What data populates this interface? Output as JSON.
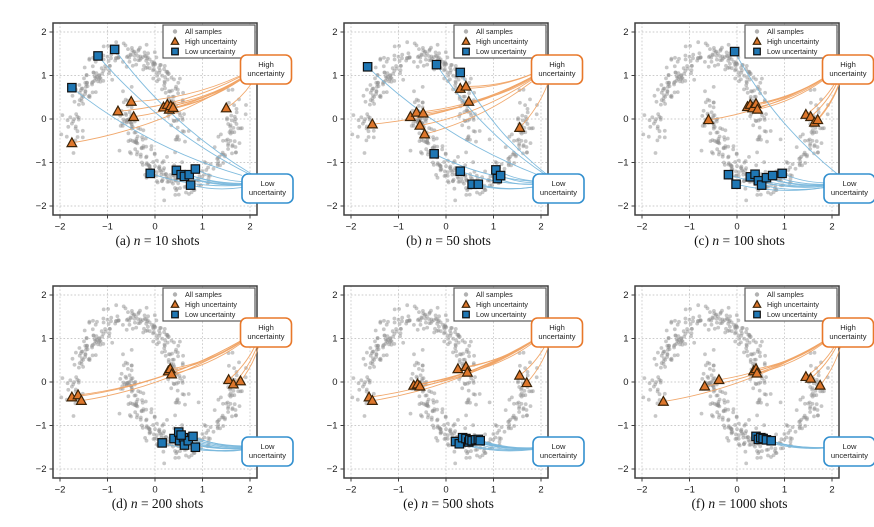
{
  "figure": {
    "background": "#ffffff",
    "colors": {
      "samples": "#909090",
      "high_fill": "#de772c",
      "high_edge": "#3a2308",
      "high_line": "#f0a466",
      "high_box_border": "#e8782a",
      "low_fill": "#1f77b4",
      "low_edge": "#101010",
      "low_line": "#7ab8dc",
      "low_box_border": "#3390cf",
      "grid": "#cbcbcb",
      "frame": "#3f3f3f",
      "tick_label": "#1a1a1a",
      "legend_border": "#5a5a5a",
      "annotation_text": "#1f1f1f"
    }
  },
  "chart_data": {
    "type": "scatter",
    "title": "",
    "xlabel": "",
    "ylabel": "",
    "xlim": [
      -2.15,
      2.17
    ],
    "ylim": [
      -2.21,
      2.21
    ],
    "xticks": [
      "−2",
      "−1",
      "0",
      "1",
      "2"
    ],
    "yticks": [
      "2",
      "1",
      "0",
      "−1",
      "−2"
    ],
    "xtick_values": [
      -2,
      -1,
      0,
      1,
      2
    ],
    "ytick_values": [
      2,
      1,
      0,
      -1,
      -2
    ],
    "grid": true,
    "legend_position": "upper right",
    "legend": [
      {
        "label": "All samples",
        "marker": "dot"
      },
      {
        "label": "High uncertainty",
        "marker": "triangle"
      },
      {
        "label": "Low uncertainty",
        "marker": "square"
      }
    ],
    "annotations": {
      "high_label": [
        "High",
        "uncertainty"
      ],
      "low_label": [
        "Low",
        "uncertainty"
      ]
    },
    "all_samples": {
      "description": "unlabeled two-moons point cloud shown as gray dots, same in every panel",
      "count": 480
    },
    "panels": [
      {
        "id": "a",
        "caption": {
          "prefix": "(a) ",
          "italic": "n",
          "suffix": " = 10 shots"
        },
        "high_uncertainty": [
          [
            -1.75,
            -0.55
          ],
          [
            -0.78,
            0.18
          ],
          [
            -0.5,
            0.4
          ],
          [
            -0.45,
            0.05
          ],
          [
            0.18,
            0.27
          ],
          [
            0.26,
            0.33
          ],
          [
            0.3,
            0.22
          ],
          [
            0.33,
            0.3
          ],
          [
            0.38,
            0.26
          ],
          [
            1.5,
            0.25
          ]
        ],
        "low_uncertainty": [
          [
            -0.85,
            1.6
          ],
          [
            -1.2,
            1.45
          ],
          [
            -1.75,
            0.72
          ],
          [
            -0.1,
            -1.25
          ],
          [
            0.45,
            -1.18
          ],
          [
            0.55,
            -1.28
          ],
          [
            0.62,
            -1.32
          ],
          [
            0.72,
            -1.28
          ],
          [
            0.85,
            -1.15
          ],
          [
            0.75,
            -1.52
          ]
        ]
      },
      {
        "id": "b",
        "caption": {
          "prefix": "(b) ",
          "italic": "n",
          "suffix": " = 50 shots"
        },
        "high_uncertainty": [
          [
            -1.55,
            -0.12
          ],
          [
            -0.75,
            0.05
          ],
          [
            -0.62,
            0.15
          ],
          [
            -0.55,
            -0.15
          ],
          [
            -0.48,
            0.13
          ],
          [
            -0.45,
            -0.35
          ],
          [
            0.3,
            0.7
          ],
          [
            0.42,
            0.75
          ],
          [
            0.48,
            0.4
          ],
          [
            1.55,
            -0.2
          ]
        ],
        "low_uncertainty": [
          [
            -1.65,
            1.2
          ],
          [
            -0.2,
            1.25
          ],
          [
            0.3,
            1.07
          ],
          [
            -0.25,
            -0.8
          ],
          [
            0.3,
            -1.2
          ],
          [
            0.55,
            -1.5
          ],
          [
            0.68,
            -1.5
          ],
          [
            1.05,
            -1.17
          ],
          [
            1.08,
            -1.37
          ],
          [
            1.15,
            -1.3
          ]
        ]
      },
      {
        "id": "c",
        "caption": {
          "prefix": "(c) ",
          "italic": "n",
          "suffix": " = 100 shots"
        },
        "high_uncertainty": [
          [
            -0.6,
            -0.02
          ],
          [
            0.22,
            0.28
          ],
          [
            0.28,
            0.33
          ],
          [
            0.33,
            0.25
          ],
          [
            0.4,
            0.35
          ],
          [
            0.43,
            0.22
          ],
          [
            1.45,
            0.1
          ],
          [
            1.55,
            0.05
          ],
          [
            1.63,
            -0.08
          ],
          [
            1.7,
            -0.02
          ]
        ],
        "low_uncertainty": [
          [
            -0.05,
            1.55
          ],
          [
            -0.18,
            -1.28
          ],
          [
            -0.02,
            -1.5
          ],
          [
            0.28,
            -1.33
          ],
          [
            0.38,
            -1.27
          ],
          [
            0.45,
            -1.42
          ],
          [
            0.52,
            -1.52
          ],
          [
            0.62,
            -1.35
          ],
          [
            0.75,
            -1.3
          ],
          [
            0.95,
            -1.25
          ]
        ]
      },
      {
        "id": "d",
        "caption": {
          "prefix": "(d) ",
          "italic": "n",
          "suffix": " = 200 shots"
        },
        "high_uncertainty": [
          [
            -1.75,
            -0.35
          ],
          [
            -1.62,
            -0.3
          ],
          [
            -1.55,
            -0.43
          ],
          [
            0.28,
            0.25
          ],
          [
            0.32,
            0.3
          ],
          [
            0.35,
            0.18
          ],
          [
            1.55,
            0.05
          ],
          [
            1.65,
            -0.05
          ],
          [
            1.8,
            0.02
          ]
        ],
        "low_uncertainty": [
          [
            0.15,
            -1.4
          ],
          [
            0.4,
            -1.3
          ],
          [
            0.5,
            -1.15
          ],
          [
            0.52,
            -1.35
          ],
          [
            0.6,
            -1.28
          ],
          [
            0.62,
            -1.45
          ],
          [
            0.7,
            -1.35
          ],
          [
            0.8,
            -1.25
          ],
          [
            0.85,
            -1.5
          ],
          [
            0.55,
            -1.22
          ]
        ]
      },
      {
        "id": "e",
        "caption": {
          "prefix": "(e) ",
          "italic": "n",
          "suffix": " = 500 shots"
        },
        "high_uncertainty": [
          [
            -1.62,
            -0.35
          ],
          [
            -1.55,
            -0.43
          ],
          [
            -0.68,
            -0.08
          ],
          [
            -0.6,
            -0.05
          ],
          [
            -0.55,
            -0.1
          ],
          [
            0.25,
            0.3
          ],
          [
            0.42,
            0.35
          ],
          [
            0.45,
            0.22
          ],
          [
            1.55,
            0.15
          ],
          [
            1.7,
            -0.02
          ]
        ],
        "low_uncertainty": [
          [
            0.2,
            -1.37
          ],
          [
            0.28,
            -1.42
          ],
          [
            0.35,
            -1.28
          ],
          [
            0.42,
            -1.3
          ],
          [
            0.48,
            -1.38
          ],
          [
            0.5,
            -1.33
          ],
          [
            0.55,
            -1.35
          ],
          [
            0.62,
            -1.33
          ],
          [
            0.68,
            -1.32
          ],
          [
            0.72,
            -1.35
          ]
        ]
      },
      {
        "id": "f",
        "caption": {
          "prefix": "(f) ",
          "italic": "n",
          "suffix": " = 1000 shots"
        },
        "high_uncertainty": [
          [
            -1.55,
            -0.45
          ],
          [
            -0.68,
            -0.1
          ],
          [
            -0.38,
            0.05
          ],
          [
            0.35,
            0.25
          ],
          [
            0.4,
            0.3
          ],
          [
            0.42,
            0.2
          ],
          [
            1.45,
            0.12
          ],
          [
            1.55,
            0.08
          ],
          [
            1.75,
            -0.08
          ]
        ],
        "low_uncertainty": [
          [
            0.4,
            -1.25
          ],
          [
            0.45,
            -1.32
          ],
          [
            0.5,
            -1.28
          ],
          [
            0.55,
            -1.3
          ],
          [
            0.62,
            -1.33
          ],
          [
            0.72,
            -1.35
          ]
        ]
      }
    ]
  }
}
